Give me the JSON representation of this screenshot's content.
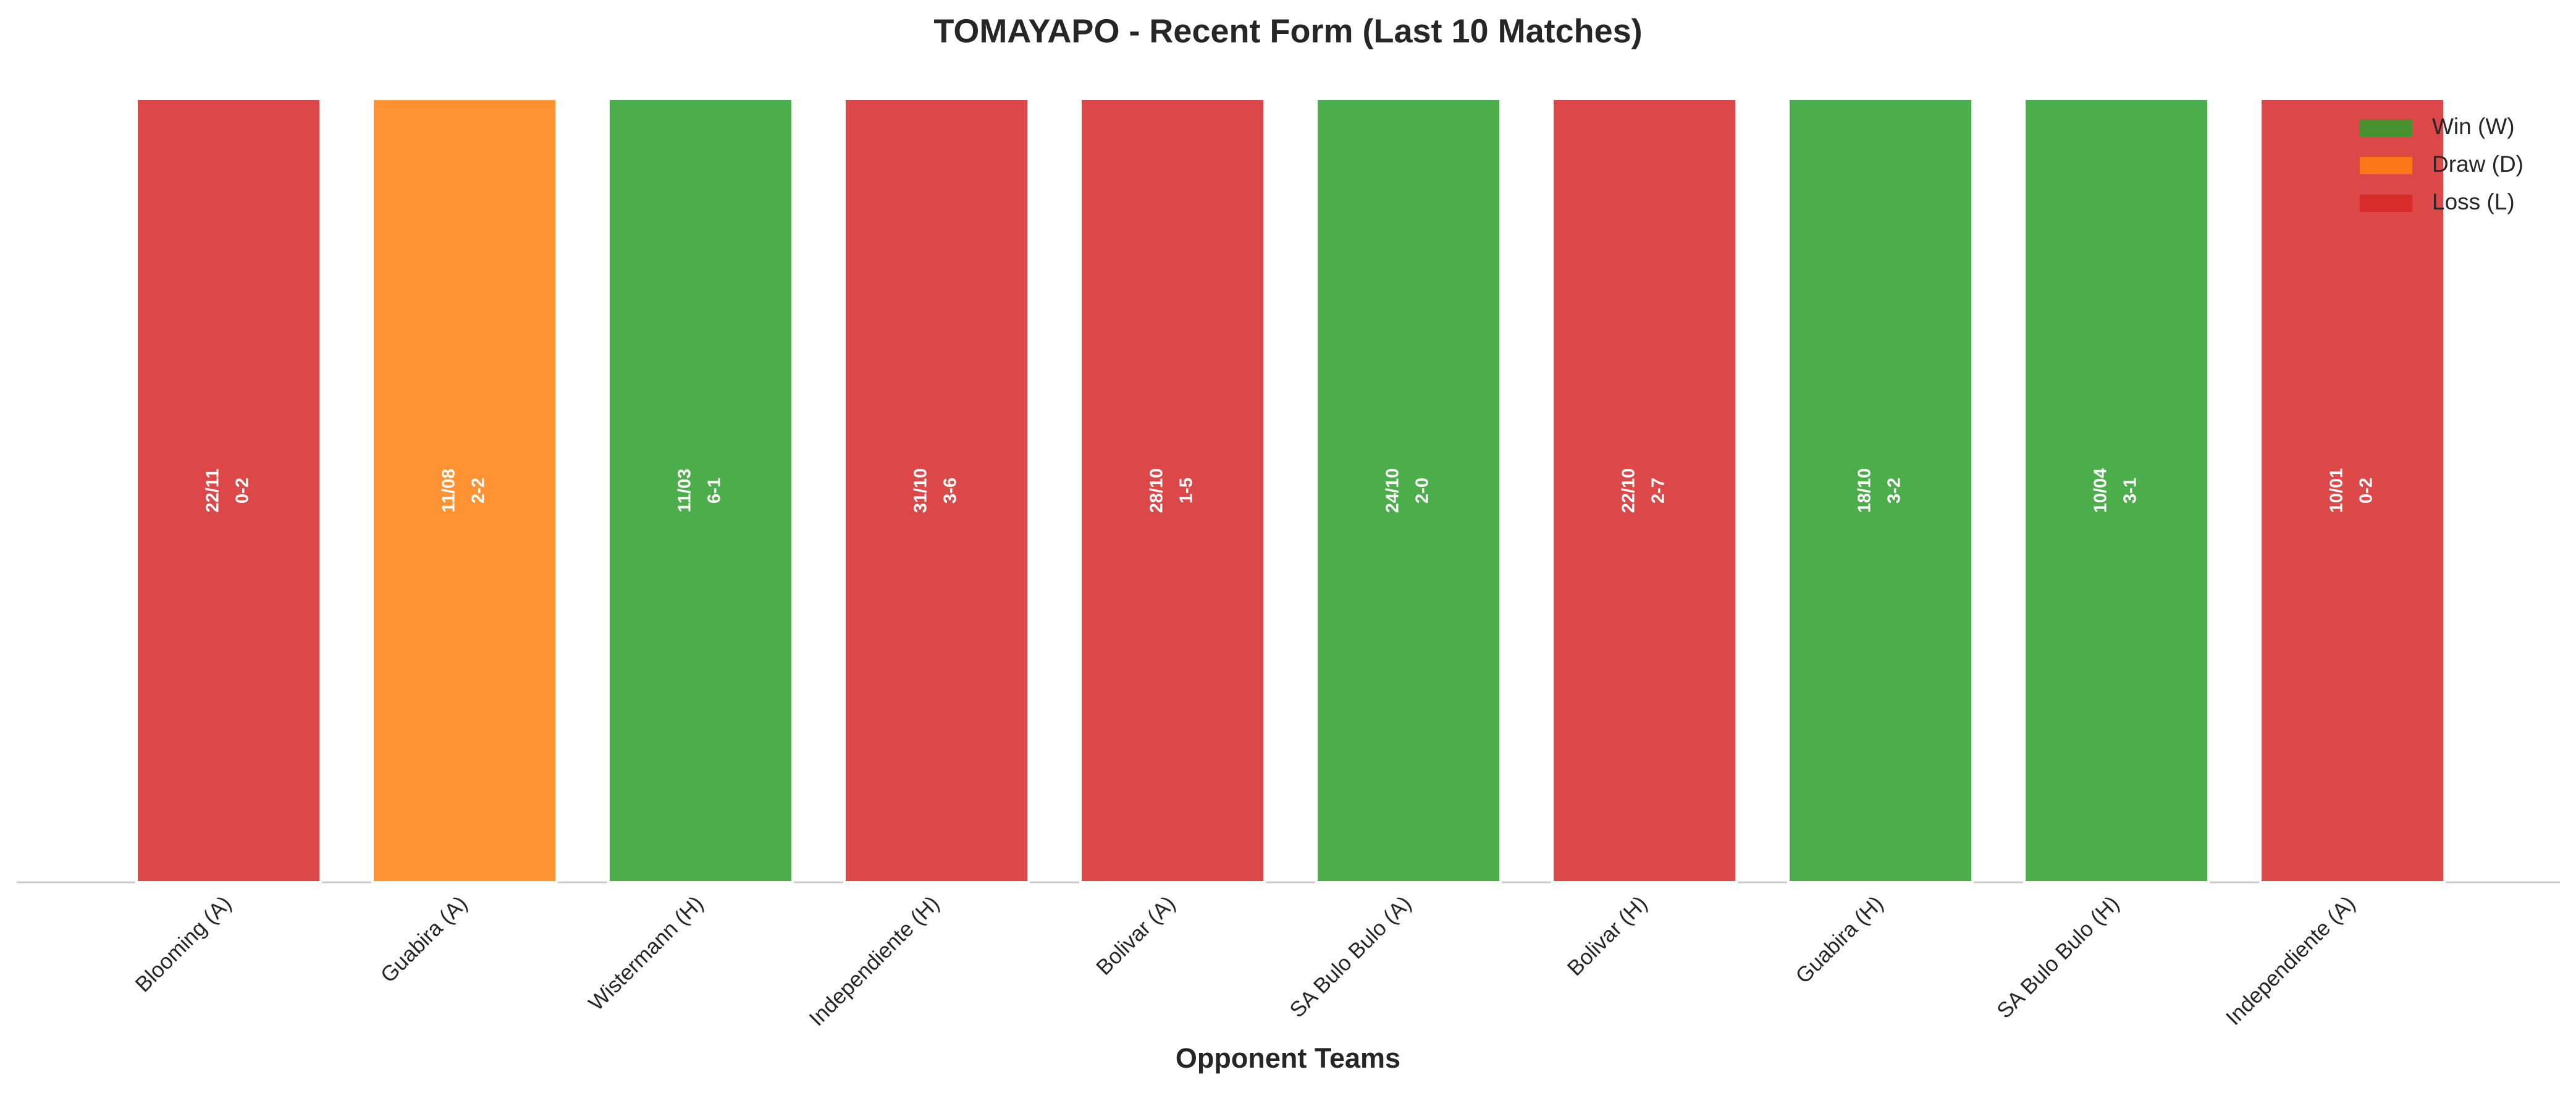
{
  "chart_data": {
    "type": "bar",
    "title": "TOMAYAPO - Recent Form (Last 10 Matches)",
    "x_label": "Opponent Teams",
    "categories": [
      "Blooming (A)",
      "Guabira (A)",
      "Wistermann (H)",
      "Independiente (H)",
      "Bolivar (A)",
      "SA Bulo Bulo (A)",
      "Bolivar (H)",
      "Guabira (H)",
      "SA Bulo Bulo (H)",
      "Independiente (A)"
    ],
    "values": [
      1,
      1,
      1,
      1,
      1,
      1,
      1,
      1,
      1,
      1
    ],
    "results": [
      "L",
      "D",
      "W",
      "L",
      "L",
      "W",
      "L",
      "W",
      "W",
      "L"
    ],
    "dates": [
      "22/11",
      "11/08",
      "11/03",
      "31/10",
      "28/10",
      "24/10",
      "22/10",
      "18/10",
      "10/04",
      "10/01"
    ],
    "scores": [
      "0-2",
      "2-2",
      "6-1",
      "3-6",
      "1-5",
      "2-0",
      "2-7",
      "3-2",
      "3-1",
      "0-2"
    ],
    "ylim": [
      0,
      1
    ],
    "legend_position": "upper right",
    "legend": [
      {
        "name": "Win (W)",
        "result": "W",
        "color": "#2ca02c"
      },
      {
        "name": "Draw (D)",
        "result": "D",
        "color": "#ff7f0e"
      },
      {
        "name": "Loss (L)",
        "result": "L",
        "color": "#d62728"
      }
    ]
  }
}
